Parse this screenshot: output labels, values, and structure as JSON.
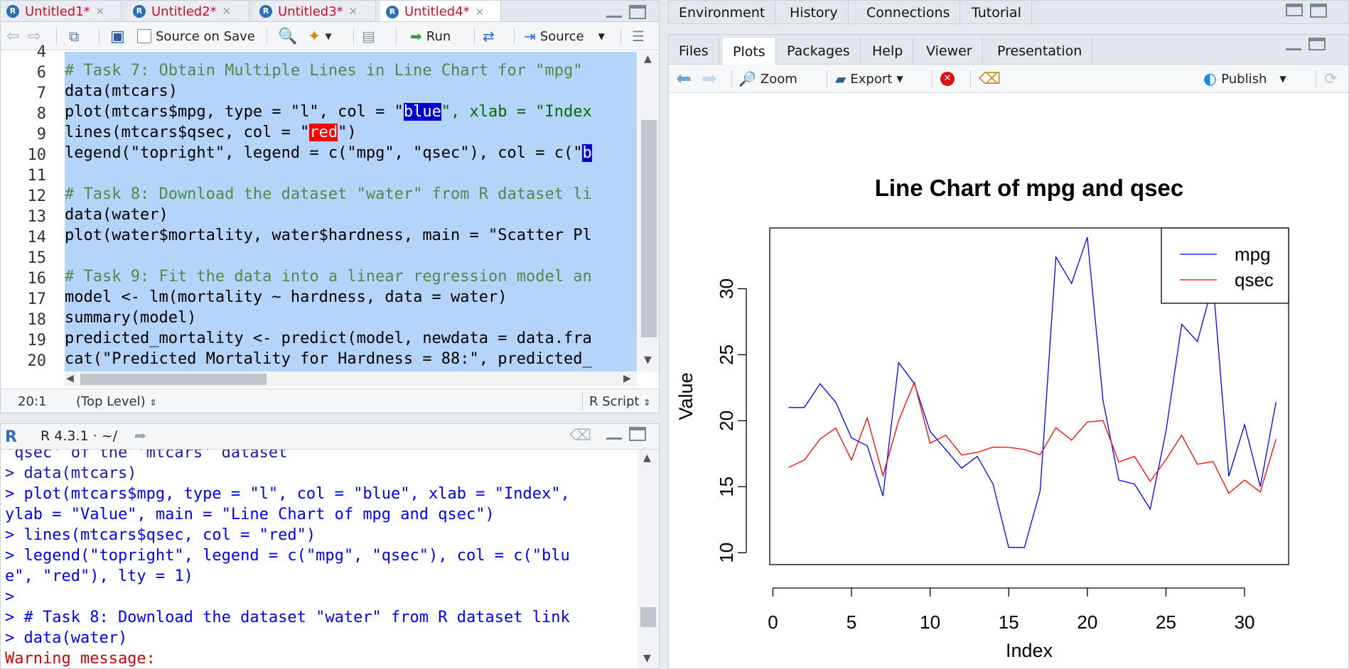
{
  "editor": {
    "tabs": [
      {
        "label": "Untitled1*",
        "active": false
      },
      {
        "label": "Untitled2*",
        "active": false
      },
      {
        "label": "Untitled3*",
        "active": false
      },
      {
        "label": "Untitled4*",
        "active": true
      }
    ],
    "toolbar": {
      "source_on_save": "Source on Save",
      "run": "Run",
      "source": "Source"
    },
    "line_numbers": [
      "4",
      "6",
      "7",
      "8",
      "9",
      "10",
      "11",
      "12",
      "13",
      "14",
      "15",
      "16",
      "17",
      "18",
      "19",
      "20"
    ],
    "code_lines": [
      "# Task 7: Obtain Multiple Lines in Line Chart for \"mpg\"",
      "data(mtcars)",
      "plot(mtcars$mpg, type = \"l\", col = \"",
      "lines(mtcars$qsec, col = \"",
      "legend(\"topright\", legend = c(\"mpg\", \"qsec\"), col = c(\"",
      "",
      "# Task 8: Download the dataset \"water\" from R dataset li",
      "data(water)",
      "plot(water$mortality, water$hardness, main = \"Scatter Pl",
      "",
      "# Task 9: Fit the data into a linear regression model an",
      "model <- lm(mortality ~ hardness, data = water)",
      "summary(model)",
      "predicted_mortality <- predict(model, newdata = data.fra",
      "cat(\"Predicted Mortality for Hardness = 88:\", predicted_"
    ],
    "line7_highlight": "blue",
    "line7_rest": "\", xlab = \"Index",
    "line8_highlight": "red",
    "line8_rest": "\")",
    "line9_highlight": "b",
    "status": {
      "position": "20:1",
      "scope": "(Top Level)",
      "type": "R Script"
    }
  },
  "console": {
    "title": "R 4.3.1 · ~/",
    "lines": [
      "'qsec' of the 'mtcars' dataset",
      "> data(mtcars)",
      "> plot(mtcars$mpg, type = \"l\", col = \"blue\", xlab = \"Index\",",
      "ylab = \"Value\", main = \"Line Chart of mpg and qsec\")",
      "> lines(mtcars$qsec, col = \"red\")",
      "> legend(\"topright\", legend = c(\"mpg\", \"qsec\"), col = c(\"blu",
      "e\", \"red\"), lty = 1)",
      ">",
      "> # Task 8: Download the dataset \"water\" from R dataset link",
      "> data(water)",
      "Warning message:"
    ]
  },
  "env_tabs": [
    "Environment",
    "History",
    "Connections",
    "Tutorial"
  ],
  "files_tabs": [
    {
      "label": "Files",
      "active": false
    },
    {
      "label": "Plots",
      "active": true
    },
    {
      "label": "Packages",
      "active": false
    },
    {
      "label": "Help",
      "active": false
    },
    {
      "label": "Viewer",
      "active": false
    },
    {
      "label": "Presentation",
      "active": false
    }
  ],
  "plot_toolbar": {
    "zoom": "Zoom",
    "export": "Export",
    "publish": "Publish"
  },
  "chart_data": {
    "type": "line",
    "title": "Line Chart of mpg and qsec",
    "xlabel": "Index",
    "ylabel": "Value",
    "xlim": [
      0,
      32
    ],
    "ylim": [
      10,
      34
    ],
    "xticks": [
      0,
      5,
      10,
      15,
      20,
      25,
      30
    ],
    "yticks": [
      10,
      15,
      20,
      25,
      30
    ],
    "legend_position": "top-right",
    "x": [
      1,
      2,
      3,
      4,
      5,
      6,
      7,
      8,
      9,
      10,
      11,
      12,
      13,
      14,
      15,
      16,
      17,
      18,
      19,
      20,
      21,
      22,
      23,
      24,
      25,
      26,
      27,
      28,
      29,
      30,
      31,
      32
    ],
    "series": [
      {
        "name": "mpg",
        "color": "#0000ff",
        "values": [
          21.0,
          21.0,
          22.8,
          21.4,
          18.7,
          18.1,
          14.3,
          24.4,
          22.8,
          19.2,
          17.8,
          16.4,
          17.3,
          15.2,
          10.4,
          10.4,
          14.7,
          32.4,
          30.4,
          33.9,
          21.5,
          15.5,
          15.2,
          13.3,
          19.2,
          27.3,
          26.0,
          30.4,
          15.8,
          19.7,
          15.0,
          21.4
        ]
      },
      {
        "name": "qsec",
        "color": "#ff0000",
        "values": [
          16.46,
          17.02,
          18.61,
          19.44,
          17.02,
          20.22,
          15.84,
          20.0,
          22.9,
          18.3,
          18.9,
          17.4,
          17.6,
          18.0,
          17.98,
          17.82,
          17.42,
          19.47,
          18.52,
          19.9,
          20.01,
          16.87,
          17.3,
          15.41,
          17.05,
          18.9,
          16.7,
          16.9,
          14.5,
          15.5,
          14.6,
          18.6
        ]
      }
    ]
  }
}
